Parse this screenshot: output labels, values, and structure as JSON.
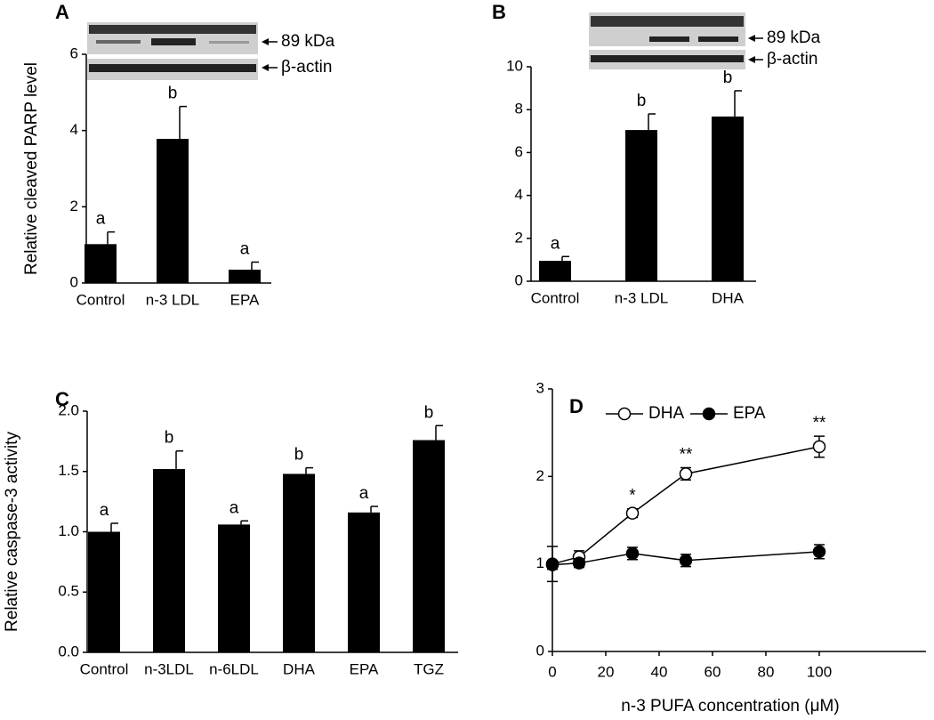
{
  "chart_data": [
    {
      "type": "bar",
      "panel": "A",
      "ylabel": "Relative cleaved PARP level",
      "blot_labels": [
        "89 kDa",
        "β-actin"
      ],
      "categories": [
        "Control",
        "n-3 LDL",
        "EPA"
      ],
      "values": [
        1.02,
        3.78,
        0.35
      ],
      "errors": [
        0.32,
        0.85,
        0.2
      ],
      "annotations": [
        "a",
        "b",
        "a"
      ],
      "color": "#000000",
      "ylim": [
        0,
        6
      ],
      "yticks": [
        0,
        2,
        4,
        6
      ]
    },
    {
      "type": "bar",
      "panel": "B",
      "blot_labels": [
        "89 kDa",
        "β-actin"
      ],
      "categories": [
        "Control",
        "n-3 LDL",
        "DHA"
      ],
      "values": [
        0.95,
        7.05,
        7.68
      ],
      "errors": [
        0.2,
        0.75,
        1.2
      ],
      "annotations": [
        "a",
        "b",
        "b"
      ],
      "color": "#000000",
      "ylim": [
        0,
        10
      ],
      "yticks": [
        0,
        2,
        4,
        6,
        8,
        10
      ]
    },
    {
      "type": "bar",
      "panel": "C",
      "ylabel": "Relative caspase-3 activity",
      "categories": [
        "Control",
        "n-3LDL",
        "n-6LDL",
        "DHA",
        "EPA",
        "TGZ"
      ],
      "values": [
        1.0,
        1.52,
        1.06,
        1.48,
        1.16,
        1.76
      ],
      "errors": [
        0.07,
        0.15,
        0.03,
        0.05,
        0.05,
        0.12
      ],
      "annotations": [
        "a",
        "b",
        "a",
        "b",
        "a",
        "b"
      ],
      "color": "#000000",
      "ylim": [
        0,
        2
      ],
      "yticks": [
        {
          "value": 0,
          "label": "0.0"
        },
        0.5,
        {
          "value": 1,
          "label": "1.0"
        },
        1.5,
        {
          "value": 2,
          "label": "2.0"
        }
      ]
    },
    {
      "type": "line",
      "panel": "D",
      "xlabel": "n-3 PUFA concentration (μM)",
      "legend": "top",
      "x": [
        0,
        10,
        30,
        50,
        100
      ],
      "series": [
        {
          "name": "DHA",
          "color": "#000000",
          "marker_fill": "#ffffff",
          "values": [
            1.0,
            1.08,
            1.58,
            2.03,
            2.34
          ],
          "errors": [
            0.2,
            0.07,
            0.05,
            0.07,
            0.12
          ]
        },
        {
          "name": "EPA",
          "color": "#000000",
          "marker_fill": "#000000",
          "values": [
            0.99,
            1.01,
            1.12,
            1.04,
            1.14
          ],
          "errors": [
            0.05,
            0.05,
            0.07,
            0.07,
            0.08
          ]
        }
      ],
      "annotations": [
        {
          "x": 30,
          "text": "*"
        },
        {
          "x": 50,
          "text": "**"
        },
        {
          "x": 100,
          "text": "**"
        }
      ],
      "xlim": [
        0,
        140
      ],
      "xticks": [
        0,
        20,
        40,
        60,
        80,
        100
      ],
      "ylim": [
        0,
        3
      ],
      "yticks": [
        0,
        1,
        2,
        3
      ]
    }
  ]
}
